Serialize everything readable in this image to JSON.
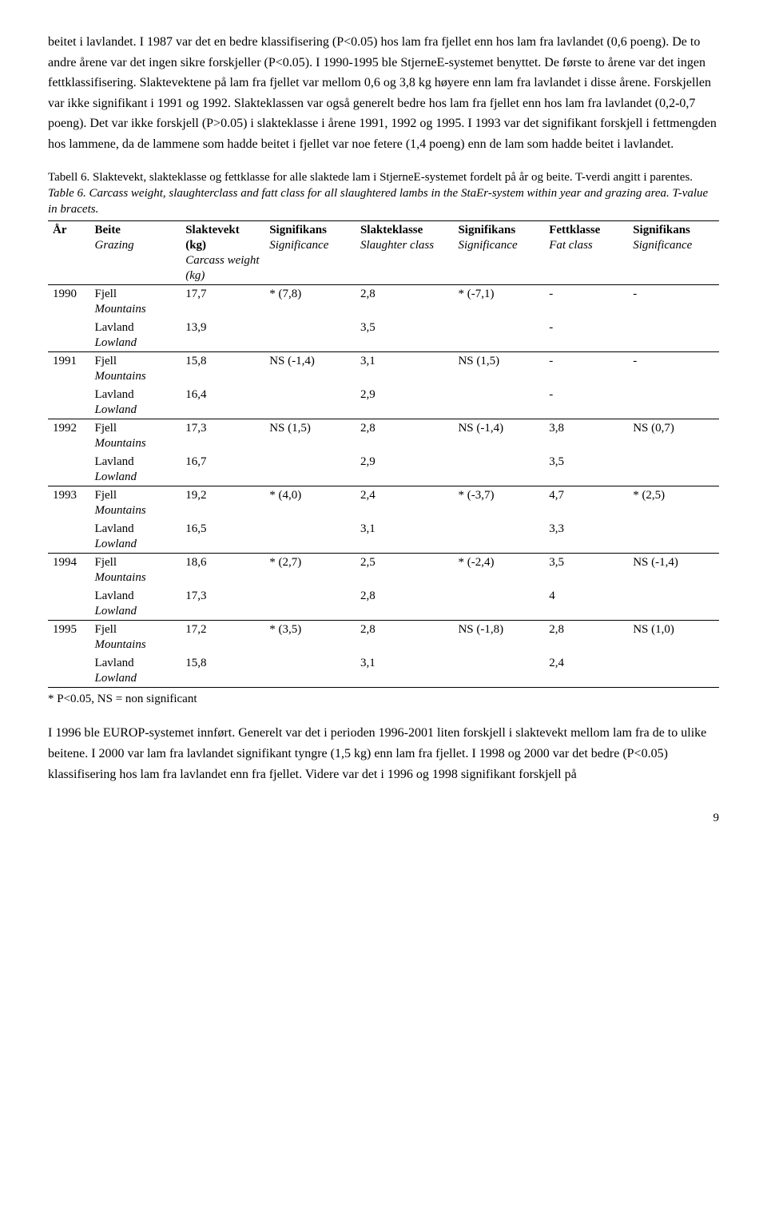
{
  "paragraphs": {
    "p1": "beitet i lavlandet. I 1987 var det en bedre klassifisering (P<0.05) hos lam fra fjellet enn hos lam fra lavlandet (0,6 poeng). De to andre årene var det ingen sikre forskjeller (P<0.05). I 1990-1995 ble StjerneE-systemet benyttet. De første to årene var det ingen fettklassifisering. Slaktevektene på lam fra fjellet var mellom 0,6 og 3,8 kg høyere enn lam fra lavlandet i disse årene. Forskjellen var ikke signifikant i 1991 og 1992. Slakteklassen var også generelt bedre hos lam fra fjellet enn hos lam fra lavlandet (0,2-0,7 poeng). Det var ikke forskjell (P>0.05) i slakteklasse i årene 1991, 1992 og 1995. I 1993 var det signifikant forskjell i fettmengden hos lammene, da de lammene som hadde beitet i fjellet var noe fetere (1,4 poeng) enn de lam som hadde beitet i lavlandet.",
    "p2": "I 1996 ble EUROP-systemet innført. Generelt var det i perioden 1996-2001 liten forskjell i slaktevekt mellom lam fra de to ulike beitene. I 2000 var lam fra lavlandet signifikant tyngre (1,5 kg) enn lam fra fjellet. I 1998 og 2000 var det bedre (P<0.05) klassifisering hos lam fra lavlandet enn fra fjellet. Videre var det i 1996 og 1998 signifikant forskjell på"
  },
  "caption": {
    "no": "Tabell 6. Slaktevekt, slakteklasse og fettklasse for alle slaktede lam i StjerneE-systemet fordelt på år og beite. T-verdi angitt i parentes.",
    "en": "Table 6. Carcass weight, slaughterclass and fatt class for all slaughtered lambs in the StaEr-system within year and grazing area. T-value in bracets."
  },
  "headers": {
    "year": "År",
    "beite": "Beite",
    "beite_sub": "Grazing",
    "carcass": "Slaktevekt (kg)",
    "carcass_sub": "Carcass weight (kg)",
    "sig": "Signifikans",
    "sig_sub": "Significance",
    "class": "Slakteklasse",
    "class_sub": "Slaughter class",
    "fat": "Fettklasse",
    "fat_sub": "Fat class"
  },
  "beite_labels": {
    "fjell": "Fjell",
    "fjell_sub": "Mountains",
    "lavland": "Lavland",
    "lavland_sub": "Lowland"
  },
  "rows": [
    {
      "year": "1990",
      "fj_cw": "17,7",
      "fj_s1": "* (7,8)",
      "fj_cl": "2,8",
      "fj_s2": "* (-7,1)",
      "fj_fat": "-",
      "fj_s3": "-",
      "lv_cw": "13,9",
      "lv_cl": "3,5",
      "lv_fat": "-"
    },
    {
      "year": "1991",
      "fj_cw": "15,8",
      "fj_s1": "NS (-1,4)",
      "fj_cl": "3,1",
      "fj_s2": "NS (1,5)",
      "fj_fat": "-",
      "fj_s3": "-",
      "lv_cw": "16,4",
      "lv_cl": "2,9",
      "lv_fat": "-"
    },
    {
      "year": "1992",
      "fj_cw": "17,3",
      "fj_s1": "NS (1,5)",
      "fj_cl": "2,8",
      "fj_s2": "NS (-1,4)",
      "fj_fat": "3,8",
      "fj_s3": "NS (0,7)",
      "lv_cw": "16,7",
      "lv_cl": "2,9",
      "lv_fat": "3,5"
    },
    {
      "year": "1993",
      "fj_cw": "19,2",
      "fj_s1": "* (4,0)",
      "fj_cl": "2,4",
      "fj_s2": "* (-3,7)",
      "fj_fat": "4,7",
      "fj_s3": "* (2,5)",
      "lv_cw": "16,5",
      "lv_cl": "3,1",
      "lv_fat": "3,3"
    },
    {
      "year": "1994",
      "fj_cw": "18,6",
      "fj_s1": "* (2,7)",
      "fj_cl": "2,5",
      "fj_s2": "* (-2,4)",
      "fj_fat": "3,5",
      "fj_s3": "NS (-1,4)",
      "lv_cw": "17,3",
      "lv_cl": "2,8",
      "lv_fat": "4"
    },
    {
      "year": "1995",
      "fj_cw": "17,2",
      "fj_s1": "* (3,5)",
      "fj_cl": "2,8",
      "fj_s2": "NS (-1,8)",
      "fj_fat": "2,8",
      "fj_s3": "NS (1,0)",
      "lv_cw": "15,8",
      "lv_cl": "3,1",
      "lv_fat": "2,4"
    }
  ],
  "table_note": "* P<0.05, NS = non significant",
  "page_number": "9"
}
